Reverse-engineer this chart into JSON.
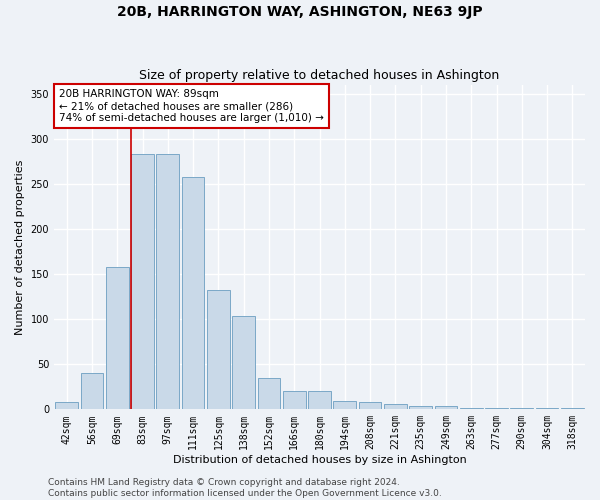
{
  "title": "20B, HARRINGTON WAY, ASHINGTON, NE63 9JP",
  "subtitle": "Size of property relative to detached houses in Ashington",
  "xlabel": "Distribution of detached houses by size in Ashington",
  "ylabel": "Number of detached properties",
  "categories": [
    "42sqm",
    "56sqm",
    "69sqm",
    "83sqm",
    "97sqm",
    "111sqm",
    "125sqm",
    "138sqm",
    "152sqm",
    "166sqm",
    "180sqm",
    "194sqm",
    "208sqm",
    "221sqm",
    "235sqm",
    "249sqm",
    "263sqm",
    "277sqm",
    "290sqm",
    "304sqm",
    "318sqm"
  ],
  "values": [
    8,
    40,
    158,
    283,
    283,
    258,
    132,
    103,
    35,
    20,
    20,
    9,
    8,
    6,
    4,
    4,
    2,
    2,
    1,
    1,
    2
  ],
  "bar_color": "#c9d9e8",
  "bar_edge_color": "#7aa8c7",
  "property_line_bin_index": 3,
  "annotation_line1": "20B HARRINGTON WAY: 89sqm",
  "annotation_line2": "← 21% of detached houses are smaller (286)",
  "annotation_line3": "74% of semi-detached houses are larger (1,010) →",
  "annotation_box_color": "#ffffff",
  "annotation_box_edge_color": "#cc0000",
  "vline_color": "#cc0000",
  "ylim": [
    0,
    360
  ],
  "yticks": [
    0,
    50,
    100,
    150,
    200,
    250,
    300,
    350
  ],
  "footer_line1": "Contains HM Land Registry data © Crown copyright and database right 2024.",
  "footer_line2": "Contains public sector information licensed under the Open Government Licence v3.0.",
  "background_color": "#eef2f7",
  "plot_background_color": "#eef2f7",
  "grid_color": "#ffffff",
  "title_fontsize": 10,
  "subtitle_fontsize": 9,
  "axis_label_fontsize": 8,
  "tick_fontsize": 7,
  "annotation_fontsize": 7.5,
  "footer_fontsize": 6.5
}
